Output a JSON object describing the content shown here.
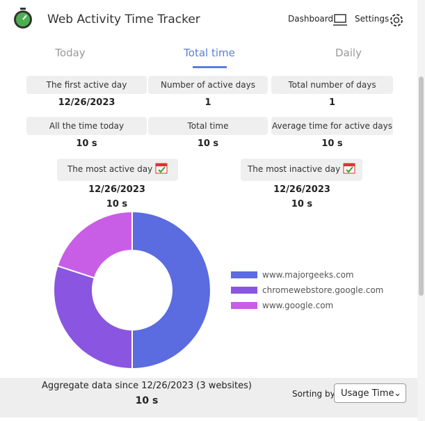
{
  "header": {
    "title": "Web Activity Time Tracker",
    "dashboard": "Dashboard",
    "settings": "Settings"
  },
  "tabs": [
    "Today",
    "Total time",
    "Daily"
  ],
  "stats": [
    {
      "label": "The first active day",
      "value": "12/26/2023"
    },
    {
      "label": "Number of active days",
      "value": "1"
    },
    {
      "label": "Total number of days",
      "value": "1"
    },
    {
      "label": "All the time today",
      "value": "10 s"
    },
    {
      "label": "Total time",
      "value": "10 s"
    },
    {
      "label": "Average time for active days",
      "value": "10 s"
    }
  ],
  "most_active": {
    "label": "The most active day",
    "date": "12/26/2023",
    "time": "10 s"
  },
  "most_inactive": {
    "label": "The most inactive day",
    "date": "12/26/2023",
    "time": "10 s"
  },
  "chart_data": {
    "type": "pie",
    "categories": [
      "www.majorgeeks.com",
      "chromewebstore.google.com",
      "www.google.com"
    ],
    "values": [
      50,
      30,
      20
    ],
    "colors": [
      "#5b6be0",
      "#8a55e0",
      "#c95ee6"
    ]
  },
  "footer": {
    "aggregate": "Aggregate data since 12/26/2023 (3 websites)",
    "total": "10 s",
    "sorting_label": "Sorting by",
    "sorting_value": "Usage Time"
  }
}
